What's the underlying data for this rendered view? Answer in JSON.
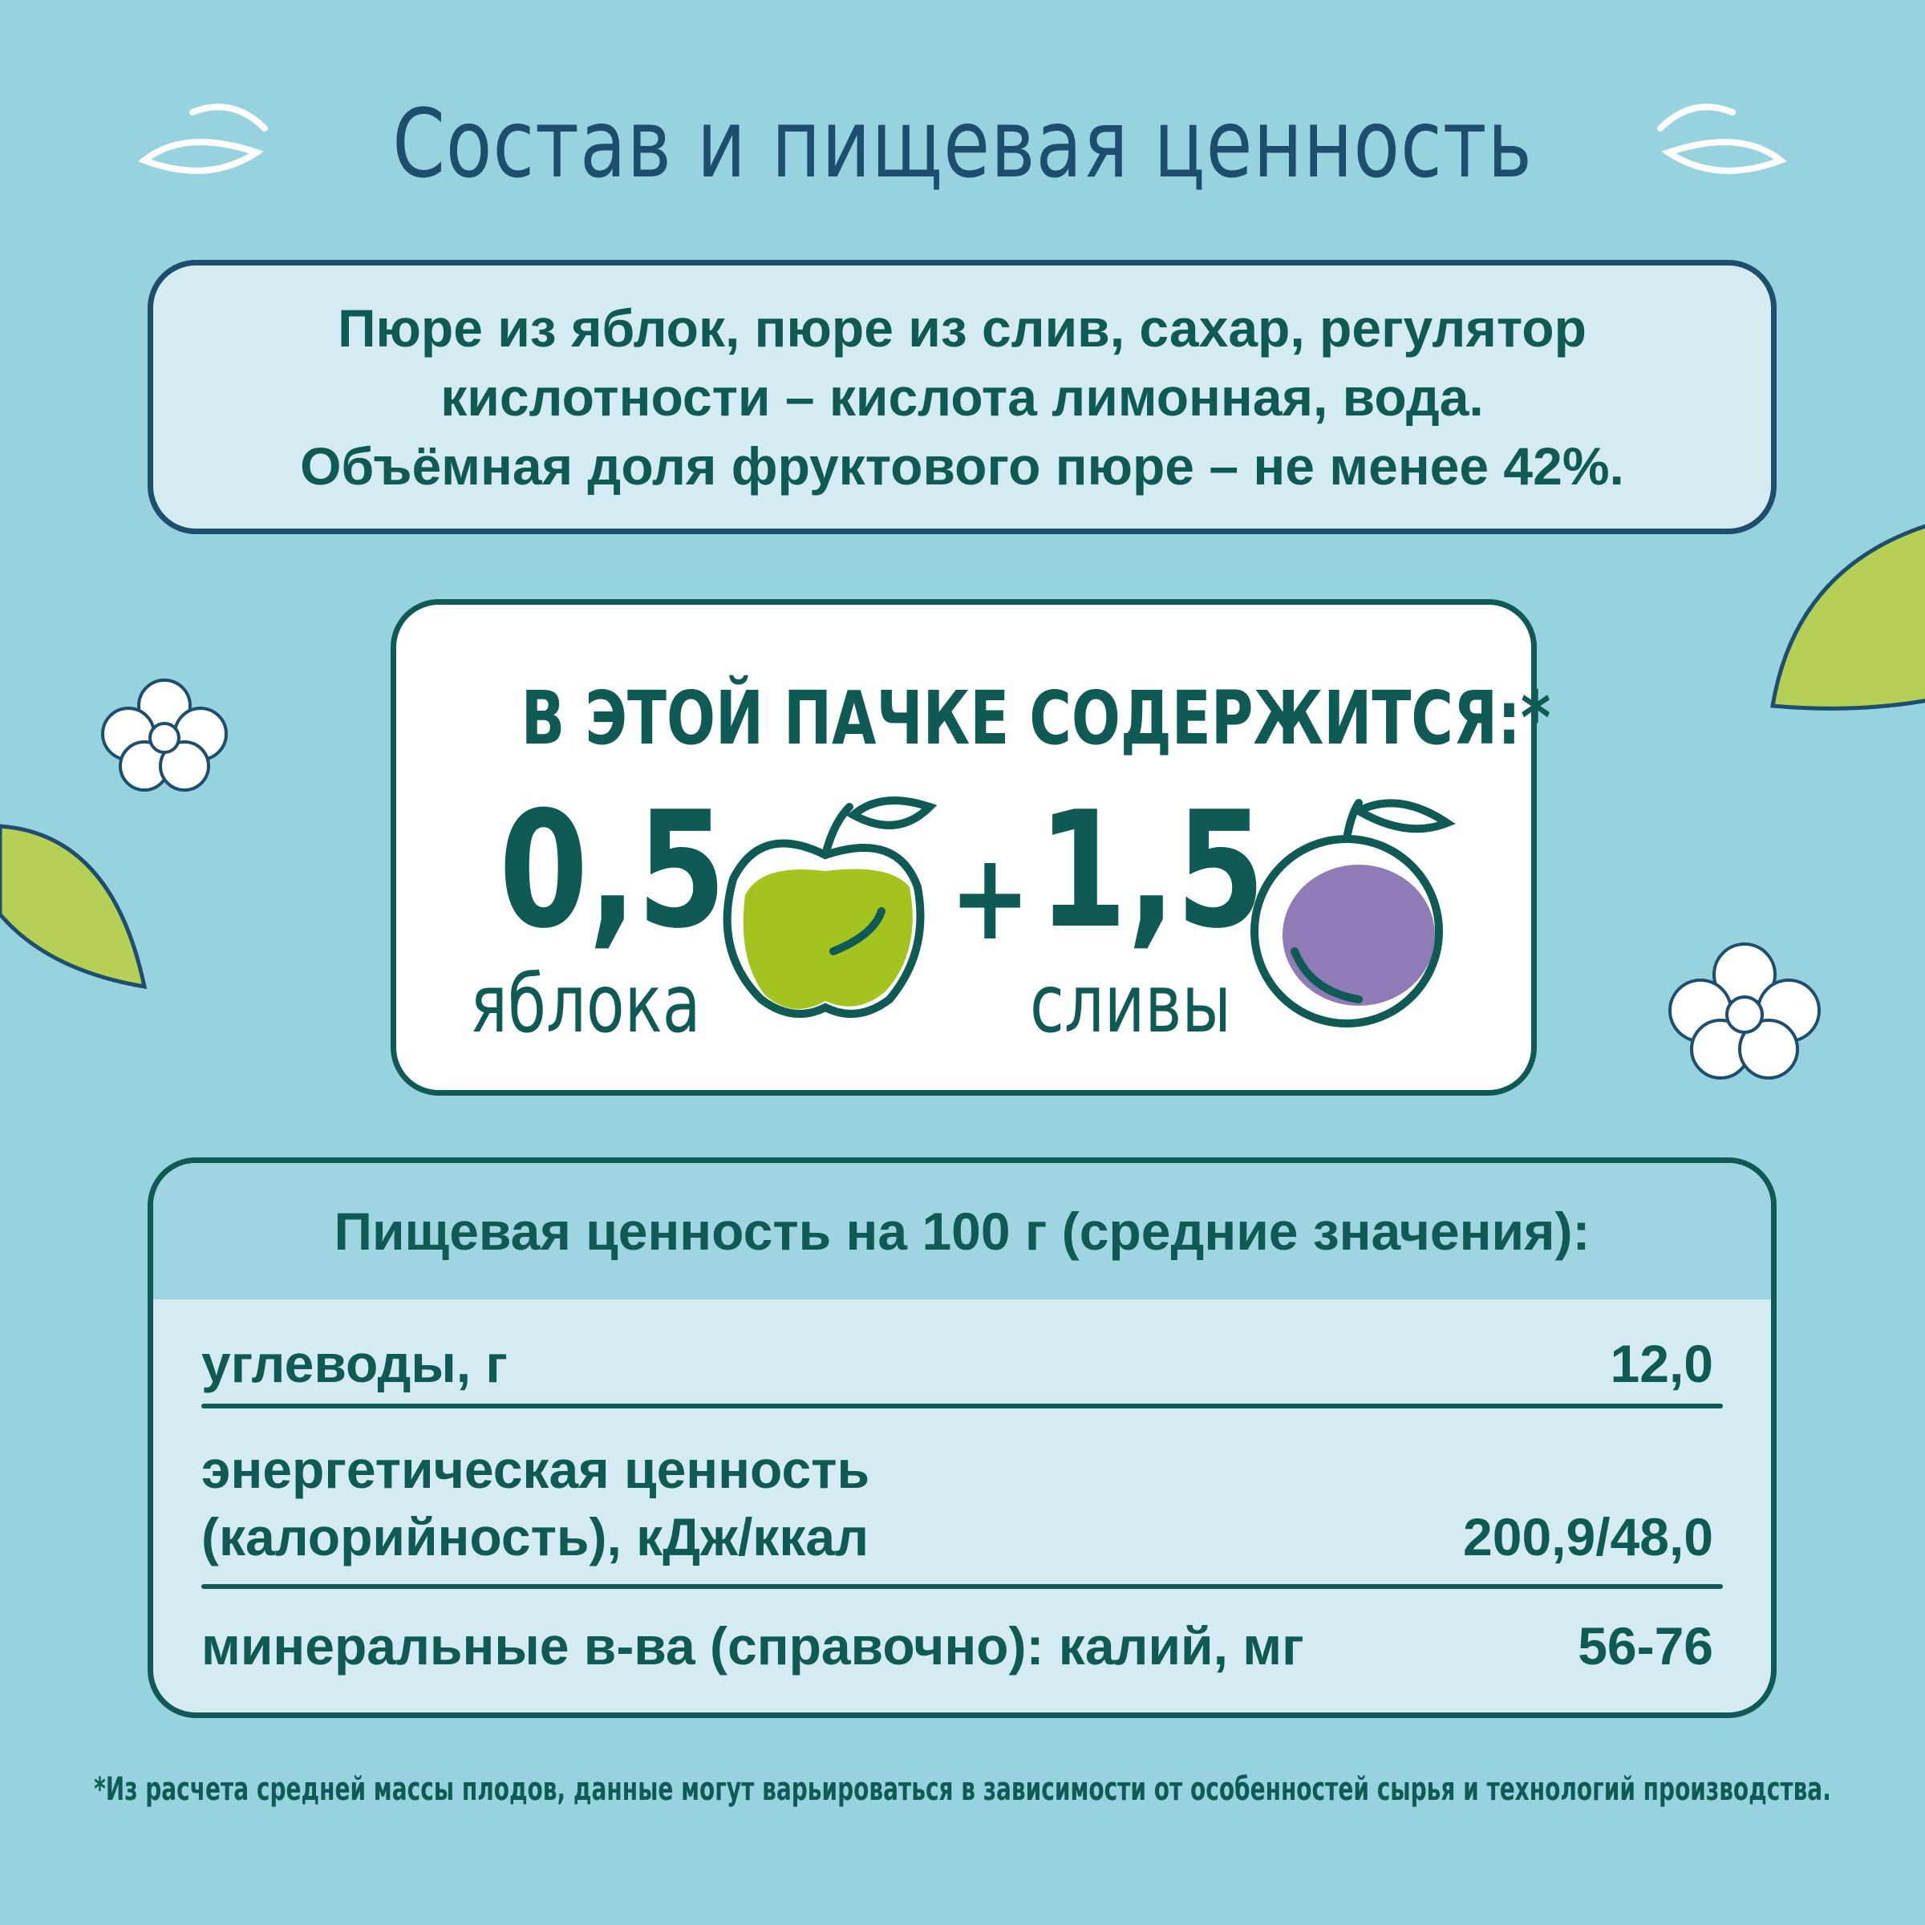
{
  "title": "Состав и пищевая ценность",
  "ingredients": {
    "lines": [
      "Пюре из яблок, пюре из слив, сахар, регулятор",
      "кислотности – кислота лимонная, вода.",
      "Объёмная доля фруктового пюре – не менее 42%."
    ]
  },
  "contents": {
    "heading": "В ЭТОЙ ПАЧКЕ СОДЕРЖИТСЯ:*",
    "apple_qty": "0,5",
    "apple_label": "яблока",
    "plus": "+",
    "plum_qty": "1,5",
    "plum_label": "сливы",
    "apple_color": "#a3c41e",
    "plum_color": "#8f7cb6"
  },
  "nutrition": {
    "header": "Пищевая ценность на 100 г (средние значения):",
    "rows": [
      {
        "label": "углеводы, г",
        "value": "12,0"
      },
      {
        "label_line1": "энергетическая ценность",
        "label": "(калорийность), кДж/ккал",
        "value": "200,9/48,0"
      },
      {
        "label": "минеральные в-ва (справочно): калий, мг",
        "value": "56-76"
      }
    ]
  },
  "footnote": "*Из расчета средней массы плодов, данные могут варьироваться в зависимости от особенностей сырья и технологий производства.",
  "colors": {
    "background": "#97d3df",
    "title": "#1d4e6e",
    "text": "#0f5a54",
    "panel": "#d4ecf1"
  }
}
